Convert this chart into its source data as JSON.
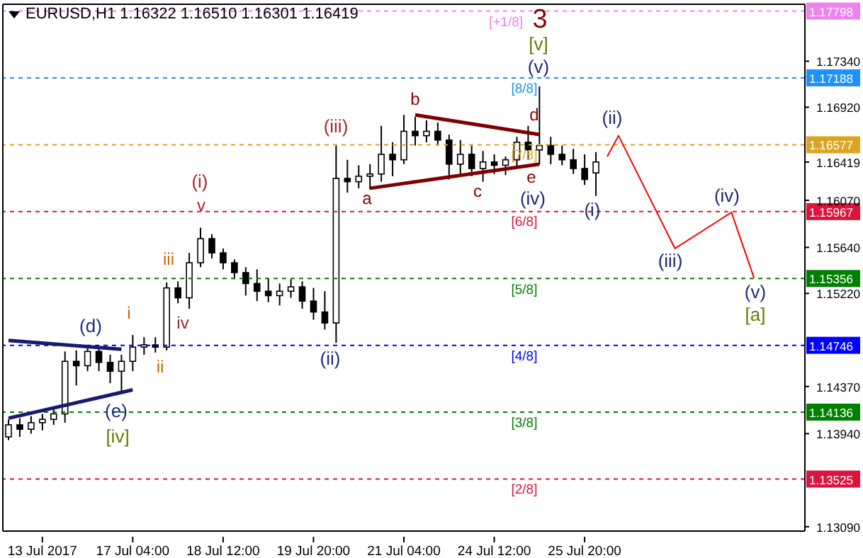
{
  "chart_data": {
    "type": "candlestick",
    "title": "EURUSD,H1 1.16322 1.16510 1.16301 1.16419",
    "color": "#000000",
    "categories": [
      null,
      null,
      null,
      "13 Jul 2017",
      null,
      null,
      null,
      null,
      null,
      null,
      null,
      "17 Jul 04:00",
      null,
      null,
      null,
      null,
      null,
      null,
      null,
      "18 Jul 12:00",
      null,
      null,
      null,
      null,
      null,
      null,
      null,
      "19 Jul 20:00",
      null,
      null,
      null,
      null,
      null,
      null,
      null,
      "21 Jul 04:00",
      null,
      null,
      null,
      null,
      null,
      null,
      null,
      "24 Jul 12:00",
      null,
      null,
      null,
      null,
      null,
      null,
      null,
      "25 Jul 20:00",
      null,
      null,
      null,
      null,
      null,
      null,
      null,
      null,
      null,
      null,
      null,
      null,
      null,
      null,
      null,
      null,
      null,
      null,
      null
    ],
    "ohlc": [
      [
        1.1391,
        1.1407,
        1.1388,
        1.1402
      ],
      [
        1.1402,
        1.1408,
        1.1391,
        1.1398
      ],
      [
        1.1398,
        1.141,
        1.1394,
        1.1404
      ],
      [
        1.1404,
        1.1412,
        1.1397,
        1.1407
      ],
      [
        1.1407,
        1.1417,
        1.1402,
        1.1412
      ],
      [
        1.1412,
        1.1469,
        1.1404,
        1.146
      ],
      [
        1.146,
        1.147,
        1.1438,
        1.1456
      ],
      [
        1.1456,
        1.1474,
        1.1451,
        1.1469
      ],
      [
        1.1469,
        1.1471,
        1.1451,
        1.1459
      ],
      [
        1.1459,
        1.1466,
        1.144,
        1.1451
      ],
      [
        1.1451,
        1.1466,
        1.143,
        1.146
      ],
      [
        1.146,
        1.1484,
        1.1451,
        1.1473
      ],
      [
        1.1473,
        1.1482,
        1.1466,
        1.1475
      ],
      [
        1.1475,
        1.1482,
        1.1468,
        1.1473
      ],
      [
        1.1473,
        1.1532,
        1.147,
        1.1527
      ],
      [
        1.1527,
        1.1533,
        1.1513,
        1.1518
      ],
      [
        1.1518,
        1.1559,
        1.1508,
        1.155
      ],
      [
        1.155,
        1.1582,
        1.1546,
        1.1572
      ],
      [
        1.1572,
        1.1576,
        1.1554,
        1.1559
      ],
      [
        1.1559,
        1.1563,
        1.1544,
        1.155
      ],
      [
        1.155,
        1.1553,
        1.1535,
        1.1541
      ],
      [
        1.1541,
        1.1546,
        1.152,
        1.1531
      ],
      [
        1.1531,
        1.1544,
        1.1515,
        1.1524
      ],
      [
        1.1524,
        1.1536,
        1.1514,
        1.152
      ],
      [
        1.152,
        1.1531,
        1.1511,
        1.1524
      ],
      [
        1.1524,
        1.1535,
        1.1518,
        1.1528
      ],
      [
        1.1528,
        1.1533,
        1.1508,
        1.1515
      ],
      [
        1.1515,
        1.1527,
        1.1498,
        1.1505
      ],
      [
        1.1505,
        1.1524,
        1.1489,
        1.1495
      ],
      [
        1.1495,
        1.1657,
        1.1477,
        1.1627
      ],
      [
        1.1627,
        1.1644,
        1.1614,
        1.1624
      ],
      [
        1.1624,
        1.1639,
        1.1618,
        1.1629
      ],
      [
        1.1629,
        1.164,
        1.1617,
        1.1631
      ],
      [
        1.1631,
        1.1675,
        1.1624,
        1.1649
      ],
      [
        1.1649,
        1.166,
        1.1629,
        1.1644
      ],
      [
        1.1644,
        1.1685,
        1.164,
        1.167
      ],
      [
        1.167,
        1.1683,
        1.1657,
        1.1666
      ],
      [
        1.1666,
        1.168,
        1.166,
        1.167
      ],
      [
        1.167,
        1.1678,
        1.1657,
        1.1662
      ],
      [
        1.1662,
        1.1667,
        1.1626,
        1.164
      ],
      [
        1.164,
        1.1662,
        1.1631,
        1.1649
      ],
      [
        1.1649,
        1.1657,
        1.1629,
        1.1636
      ],
      [
        1.1636,
        1.1652,
        1.1624,
        1.1642
      ],
      [
        1.1642,
        1.1649,
        1.1631,
        1.1639
      ],
      [
        1.1639,
        1.1647,
        1.163,
        1.1644
      ],
      [
        1.1644,
        1.1665,
        1.1636,
        1.166
      ],
      [
        1.166,
        1.1675,
        1.1644,
        1.1653
      ],
      [
        1.1653,
        1.1711,
        1.164,
        1.1657
      ],
      [
        1.1657,
        1.1665,
        1.164,
        1.1649
      ],
      [
        1.1649,
        1.1657,
        1.1639,
        1.1644
      ],
      [
        1.1644,
        1.1654,
        1.1631,
        1.1636
      ],
      [
        1.1636,
        1.1649,
        1.1621,
        1.1626
      ],
      [
        1.1632,
        1.1651,
        1.1611,
        1.1642
      ],
      null,
      null,
      null,
      null,
      null,
      null,
      null,
      null,
      null,
      null,
      null,
      null,
      null,
      null,
      null,
      null,
      null,
      null
    ],
    "series": [
      {
        "type": "line",
        "color": "#191970",
        "values": [
          1.1479,
          null,
          null,
          null,
          null,
          null,
          null,
          null,
          null,
          null,
          1.1471,
          null,
          null,
          null,
          null,
          null,
          null,
          null,
          null,
          null,
          null,
          null,
          null,
          null,
          null,
          null,
          null,
          null,
          null,
          null,
          null,
          null,
          null,
          null,
          null,
          null,
          null,
          null,
          null,
          null,
          null,
          null,
          null,
          null,
          null,
          null,
          null,
          null,
          null,
          null,
          null,
          null,
          null,
          null,
          null,
          null,
          null,
          null,
          null,
          null,
          null,
          null,
          null,
          null,
          null,
          null,
          null,
          null,
          null,
          null,
          null
        ]
      },
      {
        "type": "line",
        "color": "#191970",
        "values": [
          1.1408,
          null,
          null,
          null,
          null,
          null,
          null,
          null,
          null,
          null,
          null,
          1.1434,
          null,
          null,
          null,
          null,
          null,
          null,
          null,
          null,
          null,
          null,
          null,
          null,
          null,
          null,
          null,
          null,
          null,
          null,
          null,
          null,
          null,
          null,
          null,
          null,
          null,
          null,
          null,
          null,
          null,
          null,
          null,
          null,
          null,
          null,
          null,
          null,
          null,
          null,
          null,
          null,
          null,
          null,
          null,
          null,
          null,
          null,
          null,
          null,
          null,
          null,
          null,
          null,
          null,
          null,
          null,
          null,
          null,
          null,
          null
        ]
      },
      {
        "type": "line",
        "color": "#800000",
        "values": [
          null,
          null,
          null,
          null,
          null,
          null,
          null,
          null,
          null,
          null,
          null,
          null,
          null,
          null,
          null,
          null,
          null,
          null,
          null,
          null,
          null,
          null,
          null,
          null,
          null,
          null,
          null,
          null,
          null,
          null,
          null,
          null,
          1.1618,
          null,
          null,
          null,
          null,
          null,
          null,
          null,
          null,
          null,
          null,
          null,
          null,
          null,
          null,
          1.164,
          null,
          null,
          null,
          null,
          null,
          null,
          null,
          null,
          null,
          null,
          null,
          null,
          null,
          null,
          null,
          null,
          null,
          null,
          null,
          null,
          null,
          null,
          null
        ]
      },
      {
        "type": "line",
        "color": "#800000",
        "values": [
          null,
          null,
          null,
          null,
          null,
          null,
          null,
          null,
          null,
          null,
          null,
          null,
          null,
          null,
          null,
          null,
          null,
          null,
          null,
          null,
          null,
          null,
          null,
          null,
          null,
          null,
          null,
          null,
          null,
          null,
          null,
          null,
          null,
          null,
          null,
          null,
          1.1685,
          null,
          null,
          null,
          null,
          null,
          null,
          null,
          null,
          null,
          null,
          1.1667,
          null,
          null,
          null,
          null,
          null,
          null,
          null,
          null,
          null,
          null,
          null,
          null,
          null,
          null,
          null,
          null,
          null,
          null,
          null,
          null,
          null,
          null,
          null
        ]
      },
      {
        "type": "line",
        "color": "#ff0000",
        "values": [
          null,
          null,
          null,
          null,
          null,
          null,
          null,
          null,
          null,
          null,
          null,
          null,
          null,
          null,
          null,
          null,
          null,
          null,
          null,
          null,
          null,
          null,
          null,
          null,
          null,
          null,
          null,
          null,
          null,
          null,
          null,
          null,
          null,
          null,
          null,
          null,
          null,
          null,
          null,
          null,
          null,
          null,
          null,
          null,
          null,
          null,
          null,
          null,
          null,
          null,
          null,
          null,
          null,
          1.1647,
          1.1666,
          null,
          null,
          null,
          null,
          1.1563,
          null,
          null,
          null,
          null,
          1.1596,
          null,
          1.1536,
          null,
          null,
          null,
          null
        ]
      }
    ],
    "line_style": "solid",
    "ylim": [
      1.1305,
      1.1786
    ],
    "yticks": [
      {
        "value": 1.1309,
        "label": "1.13090"
      },
      {
        "value": 1.1394,
        "label": "1.13940"
      },
      {
        "value": 1.1437,
        "label": "1.14370"
      },
      {
        "value": 1.1522,
        "label": "1.15220"
      },
      {
        "value": 1.1564,
        "label": "1.15640"
      },
      {
        "value": 1.1607,
        "label": "1.16070"
      },
      {
        "value": 1.16419,
        "label": "1.16419"
      },
      {
        "value": 1.1692,
        "label": "1.16920"
      },
      {
        "value": 1.1734,
        "label": "1.17340"
      }
    ],
    "ref_lines": [
      {
        "axis": "y",
        "value": 1.17798,
        "label": "1.17798",
        "color": "#ee82ee",
        "line_style": "dashed"
      },
      {
        "axis": "y",
        "value": 1.17188,
        "label": "1.17188",
        "color": "#1e90ff",
        "line_style": "dashed"
      },
      {
        "axis": "y",
        "value": 1.16577,
        "label": "1.16577",
        "color": "#daa520",
        "line_style": "dashed"
      },
      {
        "axis": "y",
        "value": 1.15967,
        "label": "1.15967",
        "color": "#dc143c",
        "line_style": "dashed"
      },
      {
        "axis": "y",
        "value": 1.15356,
        "label": "1.15356",
        "color": "#008000",
        "line_style": "dashed"
      },
      {
        "axis": "y",
        "value": 1.14746,
        "label": "1.14746",
        "color": "#0000ff",
        "line_style": "dashed"
      },
      {
        "axis": "y",
        "value": 1.14136,
        "label": "1.14136",
        "color": "#008000",
        "line_style": "dashed"
      },
      {
        "axis": "y",
        "value": 1.13525,
        "label": "1.13525",
        "color": "#dc143c",
        "line_style": "dashed"
      }
    ],
    "annotations": [
      "[+1/8]",
      "[8/8]",
      "[7/8]",
      "[6/8]",
      "[5/8]",
      "[4/8]",
      "[3/8]",
      "[2/8]",
      "(d)",
      "(e)",
      "[iv]",
      "i",
      "ii",
      "iii",
      "iv",
      "v",
      "(i)",
      "(ii)",
      "(iii)",
      "a",
      "b",
      "c",
      "d",
      "e",
      "(iv)",
      "(v)",
      "[v]",
      "3",
      "(i)",
      "(ii)",
      "(iii)",
      "(iv)",
      "(v)",
      "[a]"
    ]
  }
}
